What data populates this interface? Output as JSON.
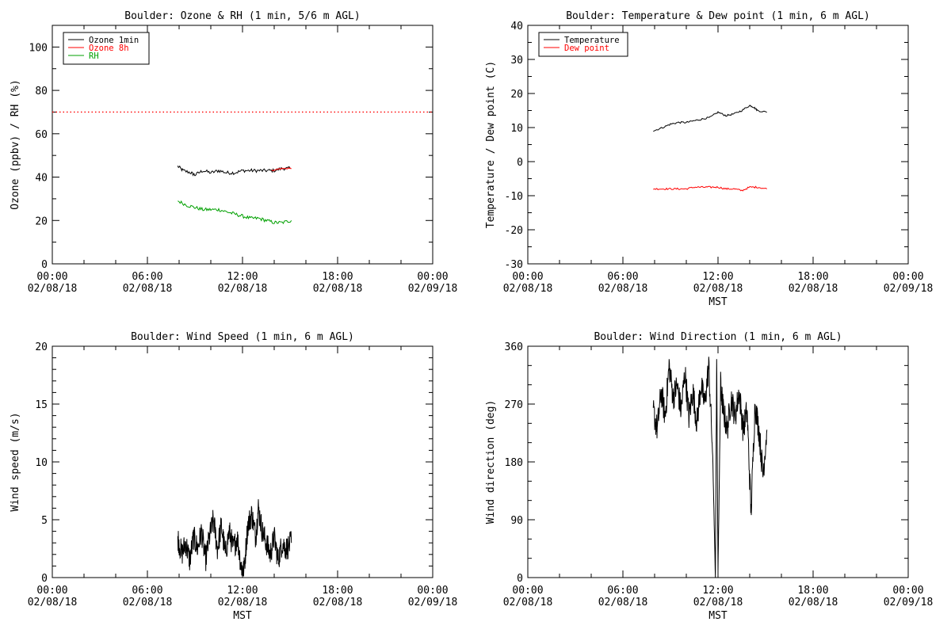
{
  "chart_data": [
    {
      "type": "line",
      "title": "Boulder: Ozone & RH (1 min, 5/6 m AGL)",
      "xlabel": "",
      "ylabel": "Ozone (ppbv) / RH (%)",
      "xlim": [
        "00:00 02/08/18",
        "00:00 02/09/18"
      ],
      "ylim": [
        0,
        110
      ],
      "x_tick_labels": [
        [
          "00:00",
          "02/08/18"
        ],
        [
          "06:00",
          "02/08/18"
        ],
        [
          "12:00",
          "02/08/18"
        ],
        [
          "18:00",
          "02/08/18"
        ],
        [
          "00:00",
          "02/09/18"
        ]
      ],
      "y_ticks": [
        0,
        20,
        40,
        60,
        80,
        100
      ],
      "legend_position": "top-left",
      "reference_lines": [
        {
          "y": 70,
          "color": "#ff0000",
          "style": "dotted"
        }
      ],
      "series": [
        {
          "name": "Ozone 1min",
          "color": "#000000",
          "x": [
            "07:55",
            "08:15",
            "08:45",
            "09:00",
            "09:30",
            "10:00",
            "10:30",
            "11:00",
            "11:30",
            "12:00",
            "12:30",
            "13:00",
            "13:30",
            "14:00",
            "14:30",
            "15:00"
          ],
          "y": [
            45,
            43,
            42,
            41,
            43,
            42,
            43,
            42,
            42,
            43,
            43,
            43,
            43,
            43,
            44,
            44
          ]
        },
        {
          "name": "Ozone 8h",
          "color": "#ff0000",
          "x": [
            "13:50",
            "14:10",
            "14:30",
            "14:50",
            "15:05"
          ],
          "y": [
            43,
            43.5,
            44,
            44,
            44
          ]
        },
        {
          "name": "RH",
          "color": "#00a000",
          "x": [
            "07:55",
            "08:30",
            "09:00",
            "09:30",
            "10:00",
            "10:30",
            "11:00",
            "11:30",
            "12:00",
            "12:30",
            "13:00",
            "13:30",
            "14:00",
            "14:30",
            "15:05"
          ],
          "y": [
            29,
            27,
            26,
            25,
            25,
            25,
            24,
            23,
            22,
            21,
            21,
            20,
            19,
            19,
            20
          ]
        }
      ]
    },
    {
      "type": "line",
      "title": "Boulder: Temperature & Dew point (1 min, 6 m AGL)",
      "xlabel": "MST",
      "ylabel": "Temperature / Dew point (C)",
      "xlim": [
        "00:00 02/08/18",
        "00:00 02/09/18"
      ],
      "ylim": [
        -30,
        40
      ],
      "x_tick_labels": [
        [
          "00:00",
          "02/08/18"
        ],
        [
          "06:00",
          "02/08/18"
        ],
        [
          "12:00",
          "02/08/18"
        ],
        [
          "18:00",
          "02/08/18"
        ],
        [
          "00:00",
          "02/09/18"
        ]
      ],
      "y_ticks": [
        -30,
        -20,
        -10,
        0,
        10,
        20,
        30,
        40
      ],
      "legend_position": "top-left",
      "series": [
        {
          "name": "Temperature",
          "color": "#000000",
          "x": [
            "07:55",
            "08:30",
            "09:00",
            "09:30",
            "10:00",
            "10:30",
            "11:00",
            "11:30",
            "12:00",
            "12:30",
            "13:00",
            "13:30",
            "14:00",
            "14:15",
            "14:30",
            "15:05"
          ],
          "y": [
            9,
            10,
            11,
            11.5,
            11.5,
            12,
            12.5,
            13,
            14.5,
            13.5,
            14,
            15,
            16.5,
            16,
            15,
            14.5
          ]
        },
        {
          "name": "Dew point",
          "color": "#ff0000",
          "x": [
            "07:55",
            "08:30",
            "09:00",
            "09:30",
            "10:00",
            "10:30",
            "11:00",
            "11:30",
            "12:00",
            "12:30",
            "13:00",
            "13:30",
            "14:00",
            "14:30",
            "15:05"
          ],
          "y": [
            -8,
            -8,
            -8,
            -8,
            -8,
            -7.5,
            -7.5,
            -7.5,
            -7.5,
            -8,
            -8,
            -8.5,
            -7.5,
            -7.5,
            -8
          ]
        }
      ]
    },
    {
      "type": "line",
      "title": "Boulder: Wind Speed (1 min, 6 m AGL)",
      "xlabel": "MST",
      "ylabel": "Wind speed (m/s)",
      "xlim": [
        "00:00 02/08/18",
        "00:00 02/09/18"
      ],
      "ylim": [
        0,
        20
      ],
      "x_tick_labels": [
        [
          "00:00",
          "02/08/18"
        ],
        [
          "06:00",
          "02/08/18"
        ],
        [
          "12:00",
          "02/08/18"
        ],
        [
          "18:00",
          "02/08/18"
        ],
        [
          "00:00",
          "02/09/18"
        ]
      ],
      "y_ticks": [
        0,
        5,
        10,
        15,
        20
      ],
      "series": [
        {
          "name": "",
          "color": "#000000",
          "x": [
            "07:55",
            "08:10",
            "08:25",
            "08:40",
            "08:55",
            "09:10",
            "09:25",
            "09:40",
            "09:55",
            "10:10",
            "10:25",
            "10:40",
            "10:55",
            "11:10",
            "11:25",
            "11:40",
            "11:55",
            "12:05",
            "12:20",
            "12:35",
            "12:50",
            "13:00",
            "13:15",
            "13:30",
            "13:45",
            "14:00",
            "14:15",
            "14:30",
            "14:45",
            "15:05"
          ],
          "y": [
            3.5,
            2,
            3,
            1.5,
            3.5,
            2.5,
            4,
            1.5,
            3.5,
            5,
            2.5,
            4.5,
            2,
            4,
            2.5,
            3.5,
            1,
            0.5,
            4.5,
            5.5,
            3.5,
            6,
            4,
            3,
            2,
            3.5,
            1.5,
            3,
            2.5,
            3
          ]
        }
      ]
    },
    {
      "type": "line",
      "title": "Boulder: Wind Direction (1 min, 6 m AGL)",
      "xlabel": "MST",
      "ylabel": "Wind direction (deg)",
      "xlim": [
        "00:00 02/08/18",
        "00:00 02/09/18"
      ],
      "ylim": [
        0,
        360
      ],
      "x_tick_labels": [
        [
          "00:00",
          "02/08/18"
        ],
        [
          "06:00",
          "02/08/18"
        ],
        [
          "12:00",
          "02/08/18"
        ],
        [
          "18:00",
          "02/08/18"
        ],
        [
          "00:00",
          "02/09/18"
        ]
      ],
      "y_ticks": [
        0,
        90,
        180,
        270,
        360
      ],
      "series": [
        {
          "name": "",
          "color": "#000000",
          "x": [
            "07:55",
            "08:10",
            "08:25",
            "08:40",
            "08:55",
            "09:10",
            "09:25",
            "09:40",
            "09:55",
            "10:10",
            "10:25",
            "10:40",
            "10:55",
            "11:10",
            "11:25",
            "11:40",
            "11:50",
            "11:55",
            "12:00",
            "12:10",
            "12:20",
            "12:35",
            "12:50",
            "13:05",
            "13:20",
            "13:35",
            "13:50",
            "14:05",
            "14:20",
            "14:35",
            "14:50",
            "15:05"
          ],
          "y": [
            260,
            230,
            290,
            250,
            330,
            280,
            300,
            260,
            320,
            250,
            290,
            240,
            300,
            270,
            330,
            190,
            0,
            340,
            10,
            300,
            260,
            230,
            280,
            250,
            290,
            230,
            260,
            100,
            270,
            230,
            160,
            230
          ]
        }
      ]
    }
  ]
}
